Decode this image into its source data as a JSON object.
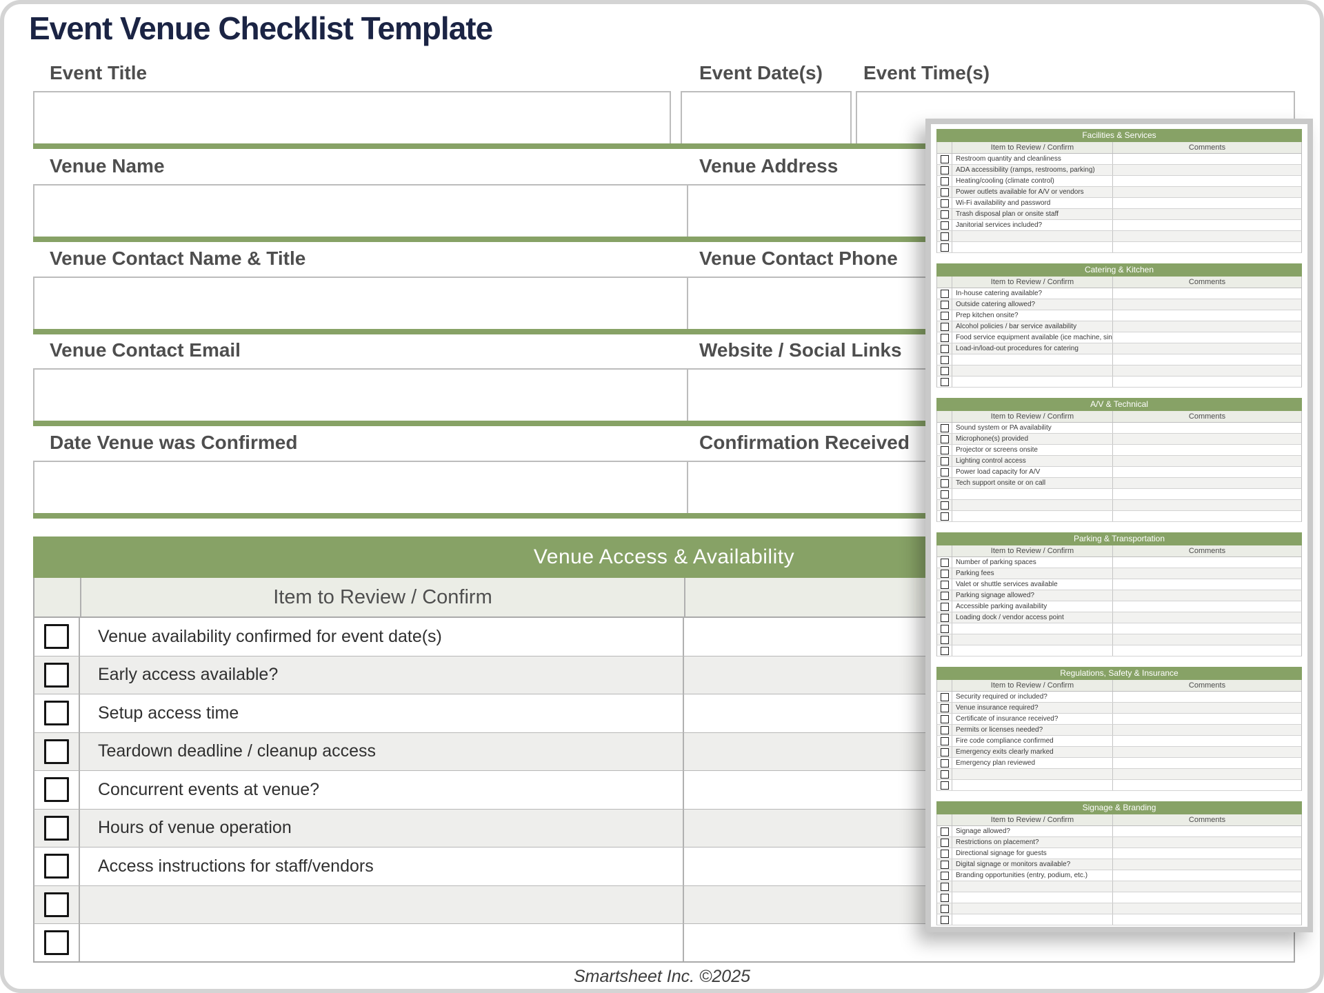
{
  "page": {
    "title": "Event Venue Checklist Template",
    "footer": "Smartsheet Inc. ©2025"
  },
  "colors": {
    "green": "#87A266",
    "navy": "#1B2444"
  },
  "form": {
    "rows": [
      {
        "cells": [
          {
            "label": "Event Title",
            "value": ""
          },
          {
            "label": "Event Date(s)",
            "value": ""
          },
          {
            "label": "Event Time(s)",
            "value": ""
          }
        ]
      },
      {
        "cells": [
          {
            "label": "Venue Name",
            "value": ""
          },
          {
            "label": "Venue Address",
            "value": ""
          }
        ]
      },
      {
        "cells": [
          {
            "label": "Venue Contact Name & Title",
            "value": ""
          },
          {
            "label": "Venue Contact Phone",
            "value": ""
          }
        ]
      },
      {
        "cells": [
          {
            "label": "Venue Contact Email",
            "value": ""
          },
          {
            "label": "Website / Social Links",
            "value": ""
          }
        ]
      },
      {
        "cells": [
          {
            "label": "Date Venue was Confirmed",
            "value": ""
          },
          {
            "label": "Confirmation Received",
            "value": ""
          }
        ]
      }
    ]
  },
  "access_table": {
    "title": "Venue Access & Availability",
    "item_header": "Item to Review / Confirm",
    "items": [
      "Venue availability confirmed for event date(s)",
      "Early access available?",
      "Setup access time",
      "Teardown deadline / cleanup access",
      "Concurrent events at venue?",
      "Hours of venue operation",
      "Access instructions for staff/vendors"
    ],
    "empty_rows": 2,
    "checkboxes_checked": false
  },
  "panel": {
    "item_header": "Item to Review / Confirm",
    "comments_header": "Comments",
    "sections": [
      {
        "title": "Facilities & Services",
        "items": [
          "Restroom quantity and cleanliness",
          "ADA accessibility (ramps, restrooms, parking)",
          "Heating/cooling (climate control)",
          "Power outlets available for A/V or vendors",
          "Wi-Fi availability and password",
          "Trash disposal plan or onsite staff",
          "Janitorial services included?"
        ],
        "empty_rows": 2
      },
      {
        "title": "Catering & Kitchen",
        "items": [
          "In-house catering available?",
          "Outside catering allowed?",
          "Prep kitchen onsite?",
          "Alcohol policies / bar service availability",
          "Food service equipment available (ice machine, sink, fridge)",
          "Load-in/load-out procedures for catering"
        ],
        "empty_rows": 3
      },
      {
        "title": "A/V & Technical",
        "items": [
          "Sound system or PA availability",
          "Microphone(s) provided",
          "Projector or screens onsite",
          "Lighting control access",
          "Power load capacity for A/V",
          "Tech support onsite or on call"
        ],
        "empty_rows": 3
      },
      {
        "title": "Parking & Transportation",
        "items": [
          "Number of parking spaces",
          "Parking fees",
          "Valet or shuttle services available",
          "Parking signage allowed?",
          "Accessible parking availability",
          "Loading dock / vendor access point"
        ],
        "empty_rows": 3
      },
      {
        "title": "Regulations, Safety & Insurance",
        "items": [
          "Security required or included?",
          "Venue insurance required?",
          "Certificate of insurance received?",
          "Permits or licenses needed?",
          "Fire code compliance confirmed",
          "Emergency exits clearly marked",
          "Emergency plan reviewed"
        ],
        "empty_rows": 2
      },
      {
        "title": "Signage & Branding",
        "items": [
          "Signage allowed?",
          "Restrictions on placement?",
          "Directional signage for guests",
          "Digital signage or monitors available?",
          "Branding opportunities (entry, podium, etc.)"
        ],
        "empty_rows": 4
      }
    ]
  }
}
